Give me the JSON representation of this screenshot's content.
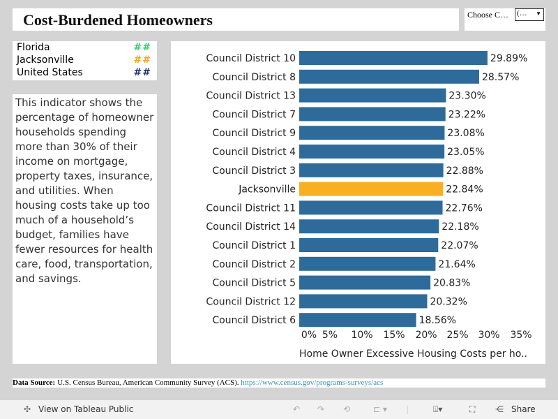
{
  "header": {
    "title": "Cost-Burdened  Homeowners",
    "chooser_label": "Choose C…",
    "chooser_value": "(…"
  },
  "legend": [
    {
      "label": "Florida",
      "mark": "##",
      "color": "#2ecc71"
    },
    {
      "label": "Jacksonville",
      "mark": "##",
      "color": "#f5a623"
    },
    {
      "label": "United States",
      "mark": "##",
      "color": "#1b2f6b"
    }
  ],
  "description": "This indicator shows the percentage of homeowner households spending more than 30% of their income on mortgage, property taxes, insurance, and utilities. When housing costs take up too much of a household’s budget, families have fewer resources for health care, food, transportation, and savings.",
  "chart_data": {
    "type": "bar",
    "orientation": "horizontal",
    "categories": [
      "Council District 10",
      "Council District 8",
      "Council District 13",
      "Council District 7",
      "Council District 9",
      "Council District 4",
      "Council District 3",
      "Jacksonville",
      "Council District 11",
      "Council District 14",
      "Council District 1",
      "Council District 2",
      "Council District 5",
      "Council District 12",
      "Council District 6"
    ],
    "values": [
      29.89,
      28.57,
      23.3,
      23.22,
      23.08,
      23.05,
      22.88,
      22.84,
      22.76,
      22.18,
      22.07,
      21.64,
      20.83,
      20.32,
      18.56
    ],
    "data_labels": [
      "29.89%",
      "28.57%",
      "23.30%",
      "23.22%",
      "23.08%",
      "23.05%",
      "22.88%",
      "22.84%",
      "22.76%",
      "22.18%",
      "22.07%",
      "21.64%",
      "20.83%",
      "20.32%",
      "18.56%"
    ],
    "highlight": "Jacksonville",
    "bar_color": "#2e6b9a",
    "highlight_color": "#f8b022",
    "xticks": [
      "0%",
      "5%",
      "10%",
      "15%",
      "20%",
      "25%",
      "30%",
      "35%"
    ],
    "xlabel": "Home Owner Excessive Housing Costs per ho..",
    "xlim": [
      0,
      35
    ],
    "grid": false
  },
  "source": {
    "label": "Data Source:",
    "text": "U.S. Census Bureau, American Community Survey (ACS).",
    "link": "https://www.census.gov/programs-surveys/acs"
  },
  "toolbar": {
    "view": "View on Tableau Public",
    "share": "Share"
  }
}
